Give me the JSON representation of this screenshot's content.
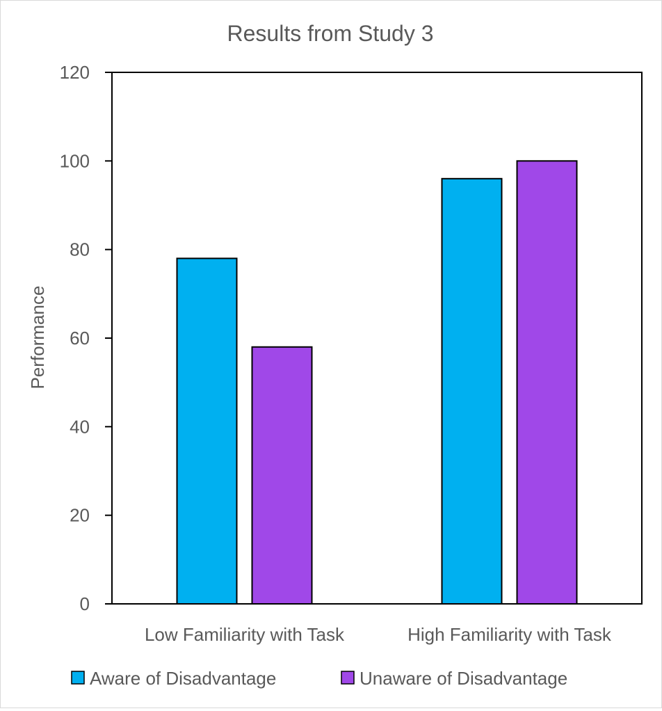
{
  "chart_data": {
    "type": "bar",
    "title": "Results from Study 3",
    "xlabel": "",
    "ylabel": "Performance",
    "categories": [
      "Low Familiarity with Task",
      "High Familiarity with Task"
    ],
    "series": [
      {
        "name": "Aware of Disadvantage",
        "color": "#00b0f0",
        "values": [
          78,
          96
        ]
      },
      {
        "name": "Unaware of Disadvantage",
        "color": "#a048e8",
        "values": [
          58,
          100
        ]
      }
    ],
    "ylim": [
      0,
      120
    ],
    "yticks": [
      "0",
      "20",
      "40",
      "60",
      "80",
      "100",
      "120"
    ],
    "grid": false,
    "legend_position": "bottom"
  }
}
